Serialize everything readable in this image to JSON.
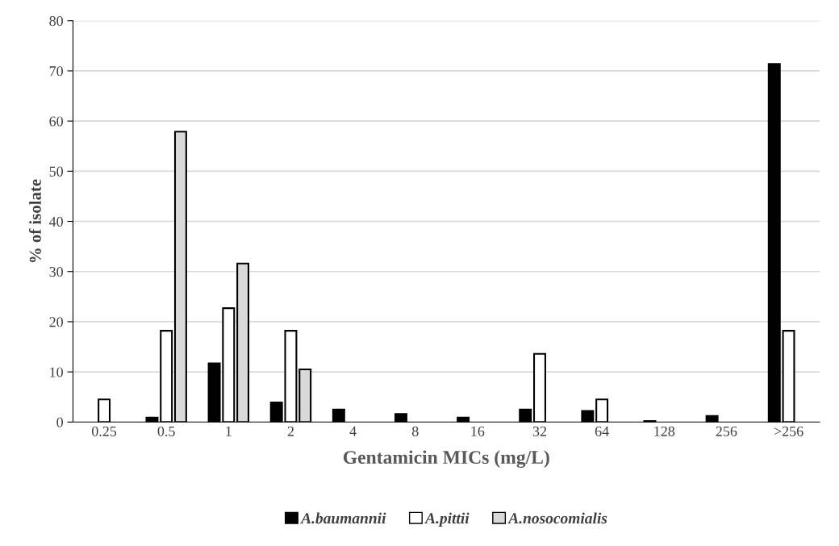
{
  "chart_data": {
    "type": "bar",
    "xlabel": "Gentamicin MICs (mg/L)",
    "ylabel": "% of isolate",
    "categories": [
      "0.25",
      "0.5",
      "1",
      "2",
      "4",
      "8",
      "16",
      "32",
      "64",
      "128",
      "256",
      ">256"
    ],
    "series": [
      {
        "name": "A.baumannii",
        "color": "#000000",
        "values": [
          0,
          0.9,
          11.7,
          3.9,
          2.5,
          1.6,
          0.9,
          2.5,
          2.2,
          0.2,
          1.2,
          71.4
        ]
      },
      {
        "name": "A.pittii",
        "color": "#ffffff",
        "values": [
          4.5,
          18.2,
          22.7,
          18.2,
          0,
          0,
          0,
          13.6,
          4.5,
          0,
          0,
          18.2
        ]
      },
      {
        "name": "A.nosocomialis",
        "color": "#d9d9d9",
        "values": [
          0,
          57.9,
          31.6,
          10.5,
          0,
          0,
          0,
          0,
          0,
          0,
          0,
          0
        ]
      }
    ],
    "ylim": [
      0,
      80
    ],
    "yticks": [
      0,
      10,
      20,
      30,
      40,
      50,
      60,
      70,
      80
    ],
    "grid": "y",
    "legend": "bottom"
  }
}
